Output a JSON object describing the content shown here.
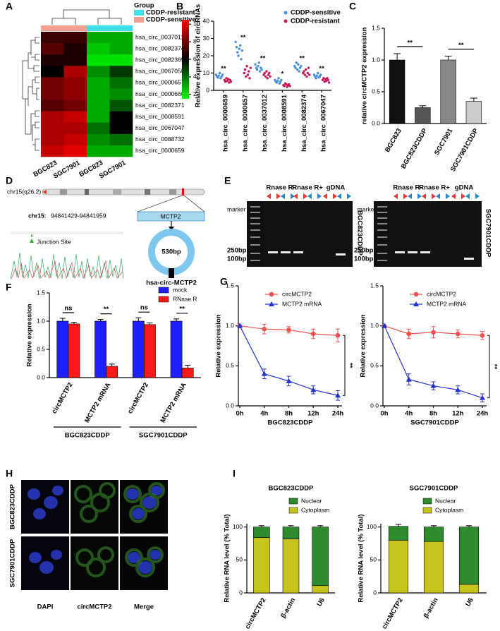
{
  "panel_labels": [
    "A",
    "B",
    "C",
    "D",
    "E",
    "F",
    "G",
    "H",
    "I"
  ],
  "chart_data": [
    {
      "type": "heatmap",
      "legend_title": "Group",
      "groups": [
        {
          "name": "CDDP-resistant",
          "color": "#40e0e8"
        },
        {
          "name": "CDDP-sensitive",
          "color": "#f4a090"
        }
      ],
      "column_group": [
        1,
        1,
        0,
        0
      ],
      "columns": [
        "BGC823",
        "SGC7901",
        "BGC823",
        "SGC7901"
      ],
      "rows": [
        "hsa_circ_0037012",
        "hsa_circ_0082374",
        "hsa_circ_0082369",
        "hsa_circ_0067058",
        "hsa_circ_0000657",
        "hsa_circ_0000660",
        "hsa_circ_0082371",
        "hsa_circ_0008591",
        "hsa_circ_0067047",
        "hsa_circ_0088732",
        "hsa_circ_0000659"
      ],
      "values": [
        [
          7,
          7,
          3,
          3
        ],
        [
          7.5,
          6.5,
          2.5,
          3
        ],
        [
          6.5,
          6.5,
          2,
          2
        ],
        [
          6,
          9,
          3.5,
          5
        ],
        [
          8,
          8.5,
          3,
          4
        ],
        [
          8,
          8.5,
          3,
          3.5
        ],
        [
          7.5,
          8,
          3,
          4.5
        ],
        [
          9,
          9.5,
          3,
          6
        ],
        [
          9,
          9,
          4,
          6
        ],
        [
          9,
          9.5,
          3.5,
          4
        ],
        [
          9.5,
          10,
          3,
          3
        ]
      ],
      "clim": [
        1.5,
        10.5
      ],
      "cticks": [
        2,
        4,
        6,
        8,
        10
      ],
      "cmap": [
        "#00ff00",
        "#000000",
        "#ff0000"
      ]
    },
    {
      "type": "strip",
      "ylabel": "Relative expression of circRNAs",
      "categories": [
        "hsa_circ_0000659",
        "hsa_circ_0000657",
        "hsa_circ_0037012",
        "hsa_circ_0008591",
        "hsa_circ_0082374",
        "hsa_circ_0067047"
      ],
      "series": [
        {
          "name": "CDDP-sensitive",
          "color": "#4a90d9",
          "values": [
            [
              9,
              8,
              7.5,
              8.5,
              10,
              7,
              8,
              9
            ],
            [
              28,
              25,
              22,
              20,
              24,
              26,
              18,
              23
            ],
            [
              15,
              13,
              12,
              14,
              16,
              11,
              13,
              12
            ],
            [
              6,
              5,
              4.5,
              5.5,
              7,
              4,
              5,
              6
            ],
            [
              14,
              13,
              16,
              12,
              15,
              11,
              13,
              14
            ],
            [
              9,
              8,
              7,
              8.5,
              10,
              7.5,
              8,
              9
            ]
          ]
        },
        {
          "name": "CDDP-resistant",
          "color": "#c2185b",
          "values": [
            [
              6,
              5,
              7,
              5.5,
              6.5,
              4.5,
              6,
              5
            ],
            [
              10,
              12,
              8,
              14,
              9,
              11,
              7,
              13
            ],
            [
              9,
              10,
              8,
              11,
              7,
              9,
              10,
              8
            ],
            [
              3,
              2.5,
              4,
              3.5,
              2,
              3,
              3.5,
              2.5
            ],
            [
              10,
              11,
              9,
              12,
              8,
              10,
              13,
              9
            ],
            [
              6,
              7,
              5,
              6.5,
              5.5,
              7,
              6,
              4.5
            ]
          ]
        }
      ],
      "significance": [
        "**",
        "**",
        "**",
        "*",
        "**",
        "**"
      ],
      "ylim": [
        0,
        40
      ],
      "yticks": [
        0,
        10,
        20,
        30,
        40
      ]
    },
    {
      "type": "bar",
      "ylabel": "relative circMCTP2 expression",
      "categories": [
        "BGC823",
        "BGC823CDDP",
        "SGC7901",
        "SGC7901CDDP"
      ],
      "values": [
        1.0,
        0.25,
        1.0,
        0.35
      ],
      "errors": [
        0.1,
        0.03,
        0.06,
        0.05
      ],
      "colors": [
        "#111111",
        "#555555",
        "#888888",
        "#cccccc"
      ],
      "significance": [
        {
          "text": "**",
          "between": [
            0,
            1
          ]
        },
        {
          "text": "**",
          "between": [
            2,
            3
          ]
        }
      ],
      "ylim": [
        0,
        1.5
      ],
      "yticks": [
        {
          "value": 0,
          "label": "0.0"
        },
        {
          "value": 0.5,
          "label": "0.5"
        },
        {
          "value": 1,
          "label": "1.0"
        },
        {
          "value": 1.5,
          "label": "1.5"
        }
      ]
    },
    {
      "type": "grouped_bar",
      "ylabel": "Relative expression",
      "categories": [
        "circMCTP2",
        "MCTP2 mRNA",
        "circMCTP2",
        "MCTP2 mRNA"
      ],
      "series": [
        {
          "name": "mock",
          "color": "#1f1fff",
          "values": [
            1.0,
            1.0,
            1.0,
            1.0
          ],
          "errors": [
            0.05,
            0.03,
            0.06,
            0.04
          ]
        },
        {
          "name": "RNase R",
          "color": "#ff1a1a",
          "values": [
            0.95,
            0.2,
            0.94,
            0.17
          ],
          "errors": [
            0.03,
            0.04,
            0.03,
            0.05
          ]
        }
      ],
      "significance": [
        "ns",
        "**",
        "ns",
        "**"
      ],
      "groups": [
        {
          "label": "BGC823CDDP",
          "span": [
            0,
            1
          ]
        },
        {
          "label": "SGC7901CDDP",
          "span": [
            2,
            3
          ]
        }
      ],
      "legend": "top-right",
      "ylim": [
        0,
        1.5
      ],
      "yticks": [
        {
          "value": 0,
          "label": "0.0"
        },
        {
          "value": 0.5,
          "label": "0.5"
        },
        {
          "value": 1,
          "label": "1.0"
        },
        {
          "value": 1.5,
          "label": "1.5"
        }
      ]
    },
    {
      "type": "line",
      "ylabel": "Relative expression",
      "xlabel": "BGC823CDDP",
      "categories": [
        "0h",
        "4h",
        "8h",
        "12h",
        "24h"
      ],
      "series": [
        {
          "name": "circMCTP2",
          "color": "#f05050",
          "marker": "circle",
          "values": [
            1.0,
            0.96,
            0.95,
            0.9,
            0.88
          ],
          "errors": [
            0,
            0.06,
            0.04,
            0.06,
            0.08
          ]
        },
        {
          "name": "MCTP2 mRNA",
          "color": "#2233cc",
          "marker": "triangle",
          "values": [
            1.0,
            0.4,
            0.31,
            0.2,
            0.13
          ],
          "errors": [
            0,
            0.06,
            0.06,
            0.05,
            0.06
          ]
        }
      ],
      "significance": "**",
      "ylim": [
        0,
        1.5
      ],
      "yticks": [
        {
          "value": 0,
          "label": "0.0"
        },
        {
          "value": 0.5,
          "label": "0.5"
        },
        {
          "value": 1,
          "label": "1.0"
        },
        {
          "value": 1.5,
          "label": "1.5"
        }
      ]
    },
    {
      "type": "line",
      "ylabel": "Relative expression",
      "xlabel": "SGC7901CDDP",
      "categories": [
        "0h",
        "4h",
        "8h",
        "12h",
        "24h"
      ],
      "series": [
        {
          "name": "circMCTP2",
          "color": "#f05050",
          "marker": "circle",
          "values": [
            1.0,
            0.9,
            0.92,
            0.9,
            0.88
          ],
          "errors": [
            0,
            0.06,
            0.07,
            0.05,
            0.05
          ]
        },
        {
          "name": "MCTP2 mRNA",
          "color": "#2233cc",
          "marker": "triangle",
          "values": [
            1.0,
            0.33,
            0.25,
            0.2,
            0.1
          ],
          "errors": [
            0,
            0.07,
            0.05,
            0.05,
            0.05
          ]
        }
      ],
      "significance": "**",
      "ylim": [
        0,
        1.5
      ],
      "yticks": [
        {
          "value": 0,
          "label": "0.0"
        },
        {
          "value": 0.5,
          "label": "0.5"
        },
        {
          "value": 1,
          "label": "1.0"
        },
        {
          "value": 1.5,
          "label": "1.5"
        }
      ]
    },
    {
      "type": "stacked_bar",
      "title": "BGC823CDDP",
      "ylabel": "Relative RNA level (% Total)",
      "categories": [
        "circMCTP2",
        "β-actin",
        "U6"
      ],
      "series": [
        {
          "name": "Cytoplasm",
          "color": "#c8c41e",
          "values": [
            84,
            82,
            11
          ]
        },
        {
          "name": "Nuclear",
          "color": "#2e8b2e",
          "values": [
            16,
            18,
            89
          ],
          "errors": [
            2,
            2,
            2
          ]
        }
      ],
      "ylim": [
        0,
        105
      ],
      "yticks": [
        0,
        50,
        100
      ]
    },
    {
      "type": "stacked_bar",
      "title": "SGC7901CDDP",
      "ylabel": "Relative RNA level (% Total)",
      "categories": [
        "circMCTP2",
        "β-actin",
        "U6"
      ],
      "series": [
        {
          "name": "Cytoplasm",
          "color": "#c8c41e",
          "values": [
            80,
            78,
            13
          ]
        },
        {
          "name": "Nuclear",
          "color": "#2e8b2e",
          "values": [
            21,
            22,
            87
          ],
          "errors": [
            3,
            2,
            2
          ]
        }
      ],
      "ylim": [
        0,
        105
      ],
      "yticks": [
        0,
        50,
        100
      ]
    }
  ],
  "diagram": {
    "chromosome": "chr15(q26.2)",
    "locus_chr": "chr15:",
    "locus_range": "94841429-94841959",
    "gene": "MCTP2",
    "junction": "Junction Site",
    "size": "530bp",
    "circ_name": "hsa-circ-MCTP2"
  },
  "gels": [
    {
      "marker": "marker",
      "lanes": [
        "Rnase R-",
        "Rnase R+",
        "gDNA"
      ],
      "sizes": [
        "250bp",
        "100bp"
      ],
      "cell_line": "BGC823CDDP"
    },
    {
      "marker": "marker",
      "lanes": [
        "Rnase R-",
        "Rnase R+",
        "gDNA"
      ],
      "sizes": [
        "250bp",
        "100bp"
      ],
      "cell_line": "SGC7901CDDP"
    }
  ],
  "micrographs": {
    "rows": [
      "BGC823CDDP",
      "SGC7901CDDP"
    ],
    "columns": [
      "DAPI",
      "circMCTP2",
      "Merge"
    ]
  }
}
